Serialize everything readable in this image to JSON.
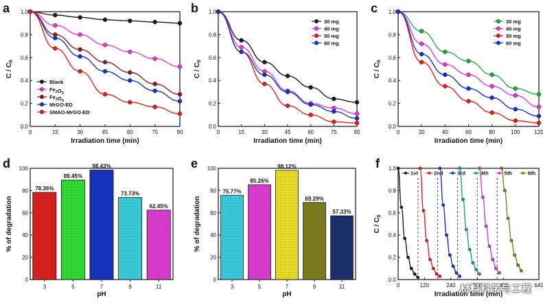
{
  "figure": {
    "watermark": "材料科学与工程",
    "colors": {
      "black": "#1a1a1a",
      "red": "#e0201b",
      "blue": "#1432c8",
      "magenta": "#e23ad6",
      "darkred": "#8a1e1e",
      "green": "#28a845",
      "cyan": "#38d0e0",
      "yellow": "#f0e020",
      "olive": "#80801a",
      "navy": "#1a3070",
      "teal": "#209a9a",
      "lightblue": "#3a60e0",
      "purple": "#c040d0",
      "orange": "#d84a1a",
      "brightgreen": "#30e030"
    }
  },
  "chart_data": [
    {
      "panel": "a",
      "type": "line",
      "xlabel": "Irradiation time (min)",
      "ylabel": "C / C0",
      "xlim": [
        0,
        90
      ],
      "ylim": [
        0,
        1.0
      ],
      "xticks": [
        0,
        15,
        30,
        45,
        60,
        75,
        90
      ],
      "yticks": [
        0.0,
        0.2,
        0.4,
        0.6,
        0.8,
        1.0
      ],
      "x": [
        0,
        15,
        30,
        45,
        60,
        75,
        90
      ],
      "series": [
        {
          "name": "Blank",
          "color": "#1a1a1a",
          "values": [
            1.0,
            0.97,
            0.95,
            0.93,
            0.92,
            0.91,
            0.9
          ]
        },
        {
          "name": "Fe2O3",
          "color": "#e23ad6",
          "values": [
            1.0,
            0.88,
            0.8,
            0.71,
            0.65,
            0.59,
            0.52
          ]
        },
        {
          "name": "Fe3O4",
          "color": "#8a1e1e",
          "values": [
            1.0,
            0.8,
            0.67,
            0.56,
            0.47,
            0.37,
            0.28
          ]
        },
        {
          "name": "MrGO-ED",
          "color": "#1432c8",
          "values": [
            1.0,
            0.77,
            0.61,
            0.48,
            0.4,
            0.31,
            0.22
          ]
        },
        {
          "name": "SMAO-MrGO-ED",
          "color": "#e0201b",
          "values": [
            1.0,
            0.68,
            0.48,
            0.28,
            0.21,
            0.17,
            0.11
          ]
        }
      ]
    },
    {
      "panel": "b",
      "type": "line",
      "xlabel": "Irradiation time (min)",
      "ylabel": "C / C0",
      "xlim": [
        0,
        90
      ],
      "ylim": [
        0,
        1.0
      ],
      "xticks": [
        0,
        15,
        30,
        45,
        60,
        75,
        90
      ],
      "yticks": [
        0.0,
        0.2,
        0.4,
        0.6,
        0.8,
        1.0
      ],
      "x": [
        0,
        15,
        30,
        45,
        60,
        75,
        90
      ],
      "series": [
        {
          "name": "30 mg",
          "color": "#1a1a1a",
          "values": [
            1.0,
            0.75,
            0.56,
            0.44,
            0.34,
            0.24,
            0.21
          ]
        },
        {
          "name": "40 mg",
          "color": "#e23ad6",
          "values": [
            1.0,
            0.69,
            0.48,
            0.31,
            0.2,
            0.16,
            0.11
          ]
        },
        {
          "name": "50 mg",
          "color": "#e0201b",
          "values": [
            1.0,
            0.65,
            0.37,
            0.18,
            0.1,
            0.04,
            0.03
          ]
        },
        {
          "name": "60 mg",
          "color": "#1432c8",
          "values": [
            1.0,
            0.65,
            0.45,
            0.3,
            0.19,
            0.13,
            0.07
          ]
        }
      ]
    },
    {
      "panel": "c",
      "type": "line",
      "xlabel": "Irradiation time (min)",
      "ylabel": "C / C0",
      "xlim": [
        0,
        120
      ],
      "ylim": [
        0,
        1.0
      ],
      "xticks": [
        0,
        20,
        40,
        60,
        80,
        100,
        120
      ],
      "yticks": [
        0.0,
        0.2,
        0.4,
        0.6,
        0.8,
        1.0
      ],
      "x": [
        0,
        20,
        40,
        60,
        80,
        100,
        120
      ],
      "series": [
        {
          "name": "30 mg",
          "color": "#28a845",
          "values": [
            1.0,
            0.83,
            0.65,
            0.57,
            0.45,
            0.33,
            0.28
          ]
        },
        {
          "name": "40 mg",
          "color": "#e23ad6",
          "values": [
            1.0,
            0.72,
            0.54,
            0.45,
            0.35,
            0.27,
            0.17
          ]
        },
        {
          "name": "50 mg",
          "color": "#e0201b",
          "values": [
            1.0,
            0.56,
            0.35,
            0.22,
            0.12,
            0.05,
            0.03
          ]
        },
        {
          "name": "60 mg",
          "color": "#1432c8",
          "values": [
            1.0,
            0.63,
            0.45,
            0.33,
            0.25,
            0.15,
            0.09
          ]
        }
      ]
    },
    {
      "panel": "d",
      "type": "bar",
      "xlabel": "pH",
      "ylabel": "% of degradation",
      "ylim": [
        0,
        100
      ],
      "yticks": [
        0,
        20,
        40,
        60,
        80,
        100
      ],
      "categories": [
        "3",
        "5",
        "7",
        "9",
        "11"
      ],
      "values": [
        78.36,
        89.45,
        98.43,
        73.73,
        62.45
      ],
      "value_labels": [
        "78.36%",
        "89.45%",
        "98.43%",
        "73.73%",
        "62.45%"
      ],
      "colors": [
        "#e0201b",
        "#30e030",
        "#1432c8",
        "#38d0e0",
        "#e23ad6"
      ]
    },
    {
      "panel": "e",
      "type": "bar",
      "xlabel": "pH",
      "ylabel": "% of degradation",
      "ylim": [
        0,
        100
      ],
      "yticks": [
        0,
        20,
        40,
        60,
        80,
        100
      ],
      "categories": [
        "3",
        "5",
        "7",
        "9",
        "11"
      ],
      "values": [
        75.77,
        85.26,
        98.12,
        69.29,
        57.33
      ],
      "value_labels": [
        "75.77%",
        "85.26%",
        "98.12%",
        "69.29%",
        "57.33%"
      ],
      "colors": [
        "#38d0e0",
        "#e23ad6",
        "#f0e020",
        "#80801a",
        "#1a3070"
      ]
    },
    {
      "panel": "f",
      "type": "line",
      "xlabel": "Irradiation time (min)",
      "ylabel": "C / C0",
      "xlim": [
        0,
        640
      ],
      "ylim": [
        0,
        1.0
      ],
      "xticks": [
        0,
        120,
        240,
        360,
        480,
        640
      ],
      "xtick_labels": [
        "0",
        "120",
        "240",
        "360",
        "480",
        "640"
      ],
      "yticks": [
        0.0,
        0.2,
        0.4,
        0.6,
        0.8,
        1.0
      ],
      "cycle_boundaries": [
        90,
        180,
        270,
        360,
        450
      ],
      "series": [
        {
          "name": "1st",
          "color": "#1a1a1a",
          "x": [
            0,
            15,
            30,
            45,
            60,
            75,
            90
          ],
          "values": [
            1.0,
            0.65,
            0.37,
            0.2,
            0.1,
            0.05,
            0.02
          ]
        },
        {
          "name": "2nd",
          "color": "#e0201b",
          "x": [
            100,
            115,
            130,
            145,
            160,
            175,
            190
          ],
          "values": [
            1.0,
            0.62,
            0.35,
            0.18,
            0.1,
            0.05,
            0.03
          ]
        },
        {
          "name": "3rd",
          "color": "#1432c8",
          "x": [
            190,
            205,
            220,
            235,
            250,
            265,
            280
          ],
          "values": [
            1.0,
            0.67,
            0.4,
            0.22,
            0.12,
            0.06,
            0.03
          ]
        },
        {
          "name": "4th",
          "color": "#209a9a",
          "x": [
            280,
            295,
            310,
            325,
            340,
            355,
            370
          ],
          "values": [
            1.0,
            0.72,
            0.45,
            0.27,
            0.15,
            0.09,
            0.05
          ]
        },
        {
          "name": "5th",
          "color": "#c040d0",
          "x": [
            370,
            385,
            400,
            415,
            430,
            445,
            460
          ],
          "values": [
            1.0,
            0.74,
            0.48,
            0.3,
            0.18,
            0.1,
            0.06
          ]
        },
        {
          "name": "6th",
          "color": "#80801a",
          "x": [
            470,
            485,
            500,
            515,
            530,
            545,
            560
          ],
          "values": [
            1.0,
            0.8,
            0.55,
            0.35,
            0.22,
            0.13,
            0.08
          ]
        }
      ]
    }
  ]
}
